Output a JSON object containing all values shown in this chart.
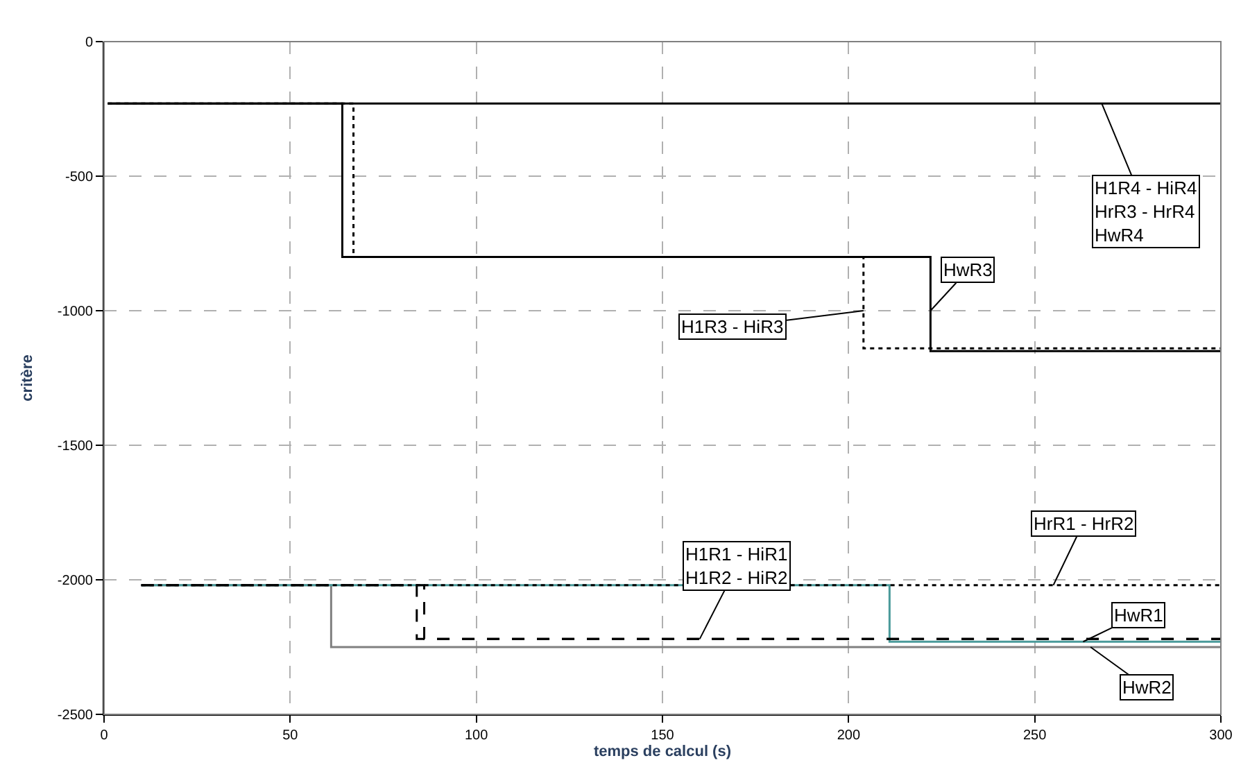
{
  "chart_data": {
    "type": "step",
    "xlabel": "temps de calcul (s)",
    "ylabel": "critère",
    "xlim": [
      0,
      300
    ],
    "xticks": [
      0,
      50,
      100,
      150,
      200,
      250,
      300
    ],
    "ylim": [
      -2500,
      0
    ],
    "yticks": [
      -2500,
      -2000,
      -1500,
      -1000,
      -500,
      0
    ],
    "grid": true,
    "marker": "none",
    "series": [
      {
        "color": "#000000",
        "line_style": "solid",
        "x": [
          1,
          300
        ],
        "values": [
          -230,
          -230
        ]
      },
      {
        "color": "#000000",
        "line_style": "solid",
        "x": [
          1,
          64,
          222,
          300
        ],
        "values": [
          -230,
          -800,
          -1150,
          -1150
        ]
      },
      {
        "color": "#000000",
        "line_style": "dotted",
        "x": [
          1,
          67,
          204,
          300
        ],
        "values": [
          -230,
          -800,
          -1140,
          -1140
        ]
      },
      {
        "color": "#000000",
        "line_style": "dotted",
        "x": [
          10,
          300
        ],
        "values": [
          -2020,
          -2020
        ]
      },
      {
        "color": "#000000",
        "line_style": "dashed",
        "x": [
          10,
          84,
          300
        ],
        "values": [
          -2020,
          -2220,
          -2220
        ]
      },
      {
        "color": "#000000",
        "line_style": "dashed",
        "x": [
          10,
          86,
          300
        ],
        "values": [
          -2020,
          -2220,
          -2220
        ]
      },
      {
        "color": "#4a9a9a",
        "line_style": "solid",
        "x": [
          10,
          211,
          300
        ],
        "values": [
          -2020,
          -2230,
          -2230
        ]
      },
      {
        "color": "#808080",
        "line_style": "solid",
        "x": [
          10,
          61,
          300
        ],
        "values": [
          -2020,
          -2250,
          -2250
        ]
      }
    ],
    "annotations": [
      {
        "text": "H1R4 - HiR4\nHrR3 - HrR4\nHwR4",
        "x": 268,
        "y": -230
      },
      {
        "text": "HwR3",
        "x": 222,
        "y": -1000
      },
      {
        "text": "H1R3 - HiR3",
        "x": 204,
        "y": -1000
      },
      {
        "text": "H1R1 - HiR1\nH1R2 - HiR2",
        "x": 160,
        "y": -2220
      },
      {
        "text": "HrR1 - HrR2",
        "x": 255,
        "y": -2020
      },
      {
        "text": "HwR1",
        "x": 263,
        "y": -2230
      },
      {
        "text": "HwR2",
        "x": 265,
        "y": -2250
      }
    ]
  }
}
